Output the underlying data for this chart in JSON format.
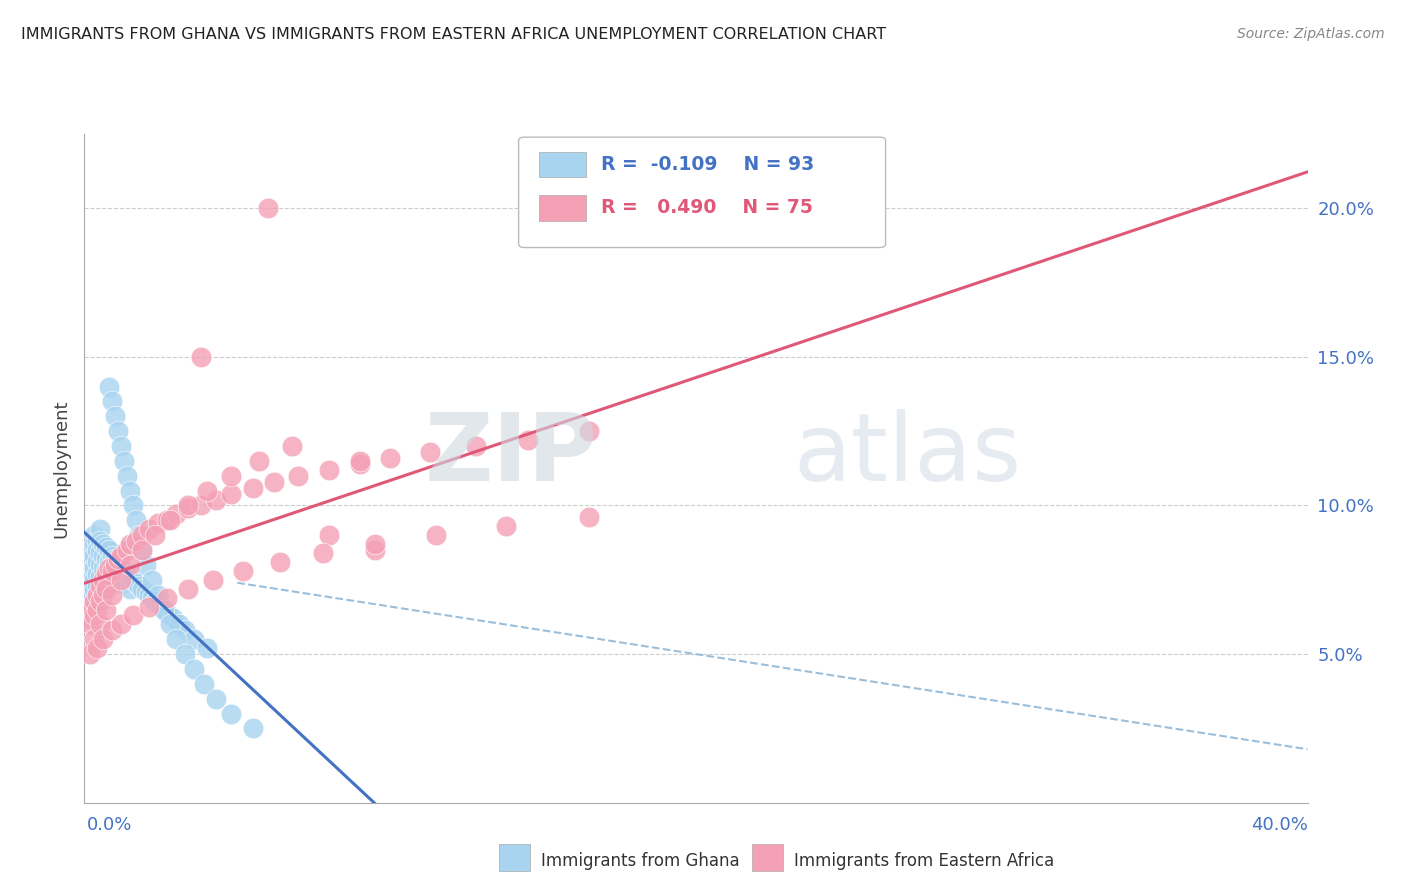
{
  "title": "IMMIGRANTS FROM GHANA VS IMMIGRANTS FROM EASTERN AFRICA UNEMPLOYMENT CORRELATION CHART",
  "source": "Source: ZipAtlas.com",
  "ylabel": "Unemployment",
  "yticks": [
    0.05,
    0.1,
    0.15,
    0.2
  ],
  "ytick_labels": [
    "5.0%",
    "10.0%",
    "15.0%",
    "20.0%"
  ],
  "xlim": [
    0.0,
    0.4
  ],
  "ylim": [
    0.0,
    0.225
  ],
  "color_ghana": "#a8d4f0",
  "color_eastern": "#f4a0b5",
  "color_line_ghana": "#4472C4",
  "color_line_eastern": "#e05878",
  "color_dashed": "#90b8d8",
  "background_color": "#ffffff",
  "watermark_zip": "ZIP",
  "watermark_atlas": "atlas",
  "ghana_x": [
    0.001,
    0.001,
    0.001,
    0.001,
    0.002,
    0.002,
    0.002,
    0.002,
    0.002,
    0.002,
    0.003,
    0.003,
    0.003,
    0.003,
    0.003,
    0.003,
    0.003,
    0.004,
    0.004,
    0.004,
    0.004,
    0.004,
    0.005,
    0.005,
    0.005,
    0.005,
    0.005,
    0.006,
    0.006,
    0.006,
    0.006,
    0.007,
    0.007,
    0.007,
    0.007,
    0.008,
    0.008,
    0.008,
    0.009,
    0.009,
    0.009,
    0.01,
    0.01,
    0.01,
    0.011,
    0.011,
    0.012,
    0.012,
    0.013,
    0.013,
    0.014,
    0.015,
    0.015,
    0.016,
    0.017,
    0.018,
    0.019,
    0.02,
    0.021,
    0.022,
    0.023,
    0.024,
    0.025,
    0.027,
    0.029,
    0.031,
    0.033,
    0.036,
    0.04,
    0.008,
    0.009,
    0.01,
    0.011,
    0.012,
    0.013,
    0.014,
    0.015,
    0.016,
    0.017,
    0.018,
    0.019,
    0.02,
    0.022,
    0.024,
    0.026,
    0.028,
    0.03,
    0.033,
    0.036,
    0.039,
    0.043,
    0.048,
    0.055
  ],
  "ghana_y": [
    0.078,
    0.075,
    0.072,
    0.068,
    0.085,
    0.082,
    0.078,
    0.075,
    0.071,
    0.068,
    0.09,
    0.087,
    0.083,
    0.079,
    0.075,
    0.072,
    0.068,
    0.088,
    0.085,
    0.081,
    0.077,
    0.073,
    0.092,
    0.088,
    0.084,
    0.08,
    0.076,
    0.087,
    0.083,
    0.079,
    0.075,
    0.086,
    0.082,
    0.078,
    0.074,
    0.085,
    0.081,
    0.077,
    0.083,
    0.08,
    0.076,
    0.082,
    0.078,
    0.074,
    0.08,
    0.077,
    0.079,
    0.075,
    0.078,
    0.074,
    0.077,
    0.076,
    0.072,
    0.075,
    0.074,
    0.073,
    0.072,
    0.071,
    0.07,
    0.069,
    0.068,
    0.067,
    0.066,
    0.064,
    0.062,
    0.06,
    0.058,
    0.055,
    0.052,
    0.14,
    0.135,
    0.13,
    0.125,
    0.12,
    0.115,
    0.11,
    0.105,
    0.1,
    0.095,
    0.09,
    0.085,
    0.08,
    0.075,
    0.07,
    0.065,
    0.06,
    0.055,
    0.05,
    0.045,
    0.04,
    0.035,
    0.03,
    0.025
  ],
  "eastern_x": [
    0.001,
    0.002,
    0.002,
    0.003,
    0.003,
    0.004,
    0.004,
    0.005,
    0.005,
    0.006,
    0.006,
    0.007,
    0.007,
    0.008,
    0.009,
    0.01,
    0.011,
    0.012,
    0.014,
    0.015,
    0.017,
    0.019,
    0.021,
    0.024,
    0.027,
    0.03,
    0.034,
    0.038,
    0.043,
    0.048,
    0.055,
    0.062,
    0.07,
    0.08,
    0.09,
    0.1,
    0.113,
    0.128,
    0.145,
    0.165,
    0.003,
    0.005,
    0.007,
    0.009,
    0.012,
    0.015,
    0.019,
    0.023,
    0.028,
    0.034,
    0.04,
    0.048,
    0.057,
    0.068,
    0.08,
    0.095,
    0.002,
    0.004,
    0.006,
    0.009,
    0.012,
    0.016,
    0.021,
    0.027,
    0.034,
    0.042,
    0.052,
    0.064,
    0.078,
    0.095,
    0.115,
    0.138,
    0.165,
    0.038,
    0.06,
    0.09
  ],
  "eastern_y": [
    0.062,
    0.065,
    0.06,
    0.068,
    0.063,
    0.07,
    0.065,
    0.073,
    0.068,
    0.075,
    0.07,
    0.077,
    0.072,
    0.079,
    0.078,
    0.08,
    0.082,
    0.083,
    0.085,
    0.087,
    0.088,
    0.09,
    0.092,
    0.094,
    0.095,
    0.097,
    0.099,
    0.1,
    0.102,
    0.104,
    0.106,
    0.108,
    0.11,
    0.112,
    0.114,
    0.116,
    0.118,
    0.12,
    0.122,
    0.125,
    0.055,
    0.06,
    0.065,
    0.07,
    0.075,
    0.08,
    0.085,
    0.09,
    0.095,
    0.1,
    0.105,
    0.11,
    0.115,
    0.12,
    0.09,
    0.085,
    0.05,
    0.052,
    0.055,
    0.058,
    0.06,
    0.063,
    0.066,
    0.069,
    0.072,
    0.075,
    0.078,
    0.081,
    0.084,
    0.087,
    0.09,
    0.093,
    0.096,
    0.15,
    0.2,
    0.115
  ]
}
